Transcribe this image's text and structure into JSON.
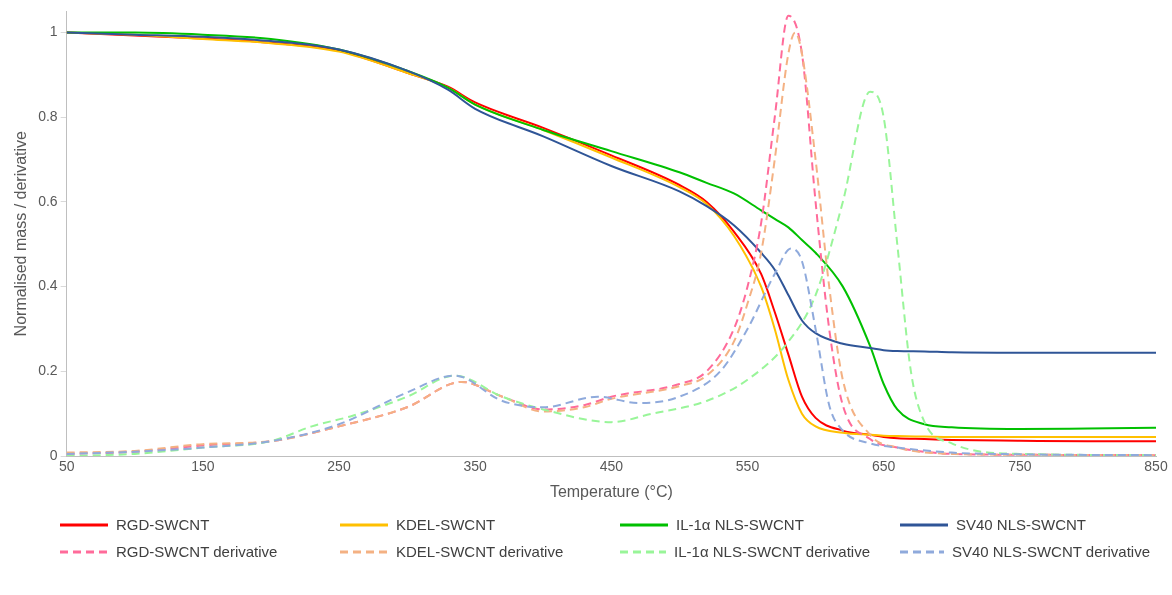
{
  "chart_data": {
    "type": "line",
    "xlabel": "Temperature (°C)",
    "ylabel": "Normalised mass / derivative",
    "xlim": [
      50,
      850
    ],
    "xticks": [
      50,
      150,
      250,
      350,
      450,
      550,
      650,
      750,
      850
    ],
    "ylim": [
      0,
      1.05
    ],
    "yticks": [
      0,
      0.2,
      0.4,
      0.6,
      0.8,
      1
    ],
    "grid": false,
    "legend": "bottom",
    "marker": "none",
    "series": [
      {
        "name": "RGD-SWCNT",
        "color": "#ff0000",
        "line_style": "solid",
        "x": [
          50,
          100,
          150,
          200,
          250,
          300,
          330,
          350,
          400,
          450,
          500,
          520,
          540,
          560,
          570,
          580,
          590,
          600,
          620,
          640,
          650,
          660,
          680,
          700,
          750,
          800,
          850
        ],
        "values": [
          1,
          0.993,
          0.986,
          0.976,
          0.957,
          0.905,
          0.872,
          0.835,
          0.775,
          0.71,
          0.64,
          0.6,
          0.53,
          0.43,
          0.34,
          0.24,
          0.14,
          0.09,
          0.06,
          0.05,
          0.045,
          0.042,
          0.04,
          0.038,
          0.036,
          0.035,
          0.035
        ]
      },
      {
        "name": "KDEL-SWCNT",
        "color": "#ffc000",
        "line_style": "solid",
        "x": [
          50,
          100,
          150,
          200,
          250,
          300,
          330,
          350,
          400,
          450,
          500,
          520,
          540,
          560,
          570,
          580,
          590,
          600,
          620,
          640,
          650,
          660,
          680,
          700,
          750,
          800,
          850
        ],
        "values": [
          1,
          0.995,
          0.985,
          0.975,
          0.955,
          0.905,
          0.87,
          0.83,
          0.77,
          0.705,
          0.635,
          0.595,
          0.52,
          0.4,
          0.3,
          0.18,
          0.1,
          0.07,
          0.055,
          0.05,
          0.048,
          0.047,
          0.046,
          0.045,
          0.045,
          0.045,
          0.045
        ]
      },
      {
        "name": "IL-1α NLS-SWCNT",
        "color": "#00c000",
        "line_style": "solid",
        "x": [
          50,
          100,
          150,
          200,
          250,
          300,
          330,
          350,
          400,
          450,
          500,
          520,
          540,
          560,
          570,
          580,
          590,
          600,
          620,
          640,
          650,
          660,
          680,
          700,
          750,
          800,
          850
        ],
        "values": [
          1,
          1,
          0.995,
          0.985,
          0.96,
          0.91,
          0.87,
          0.83,
          0.77,
          0.72,
          0.67,
          0.645,
          0.62,
          0.58,
          0.56,
          0.54,
          0.51,
          0.48,
          0.4,
          0.26,
          0.17,
          0.11,
          0.075,
          0.068,
          0.064,
          0.065,
          0.067
        ]
      },
      {
        "name": "SV40 NLS-SWCNT",
        "color": "#2f5597",
        "line_style": "solid",
        "x": [
          50,
          100,
          150,
          200,
          250,
          300,
          330,
          350,
          400,
          450,
          500,
          520,
          540,
          560,
          570,
          580,
          590,
          600,
          620,
          640,
          650,
          660,
          680,
          700,
          750,
          800,
          850
        ],
        "values": [
          1,
          0.995,
          0.99,
          0.98,
          0.96,
          0.91,
          0.865,
          0.82,
          0.755,
          0.685,
          0.625,
          0.59,
          0.545,
          0.48,
          0.44,
          0.38,
          0.32,
          0.29,
          0.265,
          0.255,
          0.25,
          0.248,
          0.247,
          0.245,
          0.244,
          0.244,
          0.244
        ]
      },
      {
        "name": "RGD-SWCNT derivative",
        "color": "#ff6b9a",
        "line_style": "dashed",
        "x": [
          50,
          100,
          150,
          200,
          250,
          300,
          340,
          370,
          400,
          430,
          450,
          500,
          520,
          540,
          550,
          560,
          570,
          580,
          590,
          600,
          610,
          620,
          640,
          660,
          700,
          750,
          850
        ],
        "values": [
          0.005,
          0.01,
          0.025,
          0.035,
          0.07,
          0.115,
          0.175,
          0.14,
          0.11,
          0.12,
          0.14,
          0.17,
          0.2,
          0.3,
          0.4,
          0.55,
          0.8,
          1.04,
          0.95,
          0.6,
          0.3,
          0.12,
          0.04,
          0.02,
          0.005,
          0.003,
          0.002
        ]
      },
      {
        "name": "KDEL-SWCNT derivative",
        "color": "#f4b183",
        "line_style": "dashed",
        "x": [
          50,
          100,
          150,
          200,
          250,
          300,
          340,
          370,
          400,
          430,
          450,
          500,
          520,
          540,
          550,
          560,
          570,
          580,
          585,
          590,
          600,
          610,
          620,
          640,
          660,
          700,
          750,
          850
        ],
        "values": [
          0.008,
          0.012,
          0.028,
          0.035,
          0.07,
          0.115,
          0.175,
          0.14,
          0.105,
          0.115,
          0.135,
          0.165,
          0.19,
          0.27,
          0.36,
          0.48,
          0.7,
          0.95,
          1.0,
          0.95,
          0.7,
          0.4,
          0.18,
          0.05,
          0.02,
          0.005,
          0.003,
          0.002
        ]
      },
      {
        "name": "IL-1α NLS-SWCNT derivative",
        "color": "#99f599",
        "line_style": "dashed",
        "x": [
          50,
          100,
          150,
          200,
          230,
          260,
          300,
          335,
          370,
          400,
          450,
          480,
          520,
          550,
          580,
          600,
          620,
          640,
          650,
          660,
          670,
          680,
          700,
          750,
          850
        ],
        "values": [
          0,
          0.005,
          0.02,
          0.035,
          0.07,
          0.095,
          0.14,
          0.19,
          0.14,
          0.11,
          0.08,
          0.1,
          0.13,
          0.18,
          0.27,
          0.38,
          0.6,
          0.86,
          0.8,
          0.5,
          0.2,
          0.08,
          0.03,
          0.005,
          0.002
        ]
      },
      {
        "name": "SV40 NLS-SWCNT derivative",
        "color": "#8faadc",
        "line_style": "dashed",
        "x": [
          50,
          100,
          150,
          200,
          250,
          300,
          335,
          370,
          400,
          440,
          470,
          500,
          530,
          550,
          570,
          582,
          590,
          600,
          610,
          620,
          640,
          660,
          700,
          750,
          850
        ],
        "values": [
          0.005,
          0.01,
          0.02,
          0.035,
          0.075,
          0.15,
          0.19,
          0.13,
          0.115,
          0.14,
          0.125,
          0.14,
          0.2,
          0.3,
          0.43,
          0.49,
          0.46,
          0.3,
          0.12,
          0.06,
          0.03,
          0.02,
          0.008,
          0.004,
          0.002
        ]
      }
    ]
  }
}
